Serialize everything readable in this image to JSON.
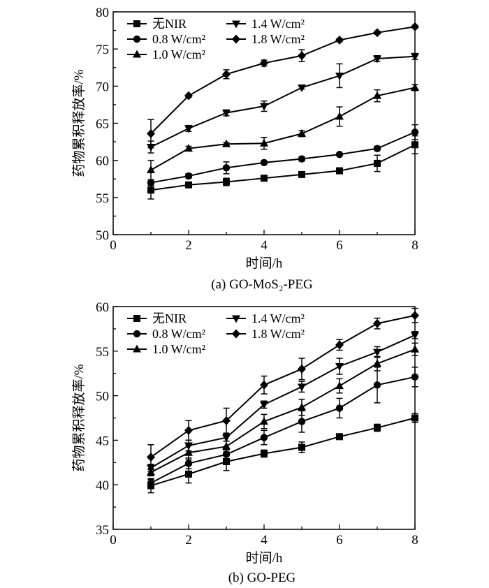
{
  "chart_data": [
    {
      "type": "line",
      "caption": "(a) GO-MoS₂-PEG",
      "xlabel": "时间/h",
      "ylabel": "药物累积释放率/%",
      "xlim": [
        0,
        8
      ],
      "ylim": [
        50,
        80
      ],
      "xticks": [
        0,
        2,
        4,
        6,
        8
      ],
      "yticks": [
        50,
        55,
        60,
        65,
        70,
        75,
        80
      ],
      "x": [
        1,
        2,
        3,
        4,
        5,
        6,
        7,
        8
      ],
      "legend_position": "top-left",
      "series": [
        {
          "name": "无NIR",
          "marker": "square",
          "values": [
            56.0,
            56.7,
            57.1,
            57.6,
            58.1,
            58.6,
            59.6,
            62.1
          ],
          "errors": [
            1.2,
            0.3,
            0.5,
            0.2,
            0.3,
            0.2,
            1.1,
            1.2
          ]
        },
        {
          "name": "0.8 W/cm²",
          "marker": "circle",
          "values": [
            57.0,
            57.9,
            59.0,
            59.7,
            60.2,
            60.8,
            61.6,
            63.8
          ],
          "errors": [
            0.4,
            0.3,
            0.8,
            0.2,
            0.3,
            0.2,
            0.3,
            1.0
          ]
        },
        {
          "name": "1.0 W/cm²",
          "marker": "triangle-up",
          "values": [
            58.7,
            61.6,
            62.2,
            62.3,
            63.6,
            65.9,
            68.7,
            69.8
          ],
          "errors": [
            1.3,
            0.3,
            0.2,
            0.8,
            0.4,
            1.3,
            0.8,
            0.4
          ]
        },
        {
          "name": "1.4 W/cm²",
          "marker": "triangle-down",
          "values": [
            61.8,
            64.3,
            66.4,
            67.3,
            69.8,
            71.4,
            73.7,
            74.0
          ],
          "errors": [
            0.8,
            0.4,
            0.4,
            0.7,
            0.2,
            1.6,
            0.4,
            0.4
          ]
        },
        {
          "name": "1.8 W/cm²",
          "marker": "diamond",
          "values": [
            63.6,
            68.7,
            71.6,
            73.1,
            74.1,
            76.2,
            77.2,
            78.0
          ],
          "errors": [
            1.9,
            0.2,
            0.6,
            0.4,
            0.8,
            0.2,
            0.2,
            0.2
          ]
        }
      ]
    },
    {
      "type": "line",
      "caption": "(b) GO-PEG",
      "xlabel": "时间/h",
      "ylabel": "药物累积释放率/%",
      "xlim": [
        0,
        8
      ],
      "ylim": [
        35,
        60
      ],
      "xticks": [
        0,
        2,
        4,
        6,
        8
      ],
      "yticks": [
        35,
        40,
        45,
        50,
        55,
        60
      ],
      "x": [
        1,
        2,
        3,
        4,
        5,
        6,
        7,
        8
      ],
      "legend_position": "top-left",
      "series": [
        {
          "name": "无NIR",
          "marker": "square",
          "values": [
            39.9,
            41.2,
            42.6,
            43.5,
            44.2,
            45.4,
            46.4,
            47.5
          ],
          "errors": [
            0.8,
            1.0,
            1.0,
            0.4,
            0.6,
            0.2,
            0.4,
            0.5
          ]
        },
        {
          "name": "0.8 W/cm²",
          "marker": "circle",
          "values": [
            40.2,
            42.4,
            43.4,
            45.3,
            47.1,
            48.6,
            51.2,
            52.1
          ],
          "errors": [
            0.4,
            0.6,
            0.5,
            0.8,
            1.2,
            1.1,
            2.0,
            1.1
          ]
        },
        {
          "name": "1.0 W/cm²",
          "marker": "triangle-up",
          "values": [
            41.4,
            43.6,
            44.3,
            47.1,
            48.7,
            51.1,
            53.6,
            55.2
          ],
          "errors": [
            0.4,
            0.8,
            0.6,
            0.8,
            0.9,
            0.8,
            0.8,
            0.7
          ]
        },
        {
          "name": "1.4 W/cm²",
          "marker": "triangle-down",
          "values": [
            41.9,
            44.4,
            45.3,
            49.0,
            51.0,
            53.3,
            54.9,
            56.8
          ],
          "errors": [
            0.4,
            0.6,
            0.4,
            0.4,
            0.6,
            0.9,
            0.6,
            0.4
          ]
        },
        {
          "name": "1.8 W/cm²",
          "marker": "diamond",
          "values": [
            43.1,
            46.1,
            47.2,
            51.2,
            53.0,
            55.7,
            58.1,
            59.0
          ],
          "errors": [
            1.4,
            1.1,
            1.4,
            1.0,
            1.2,
            0.6,
            0.6,
            0.8
          ]
        }
      ]
    }
  ]
}
